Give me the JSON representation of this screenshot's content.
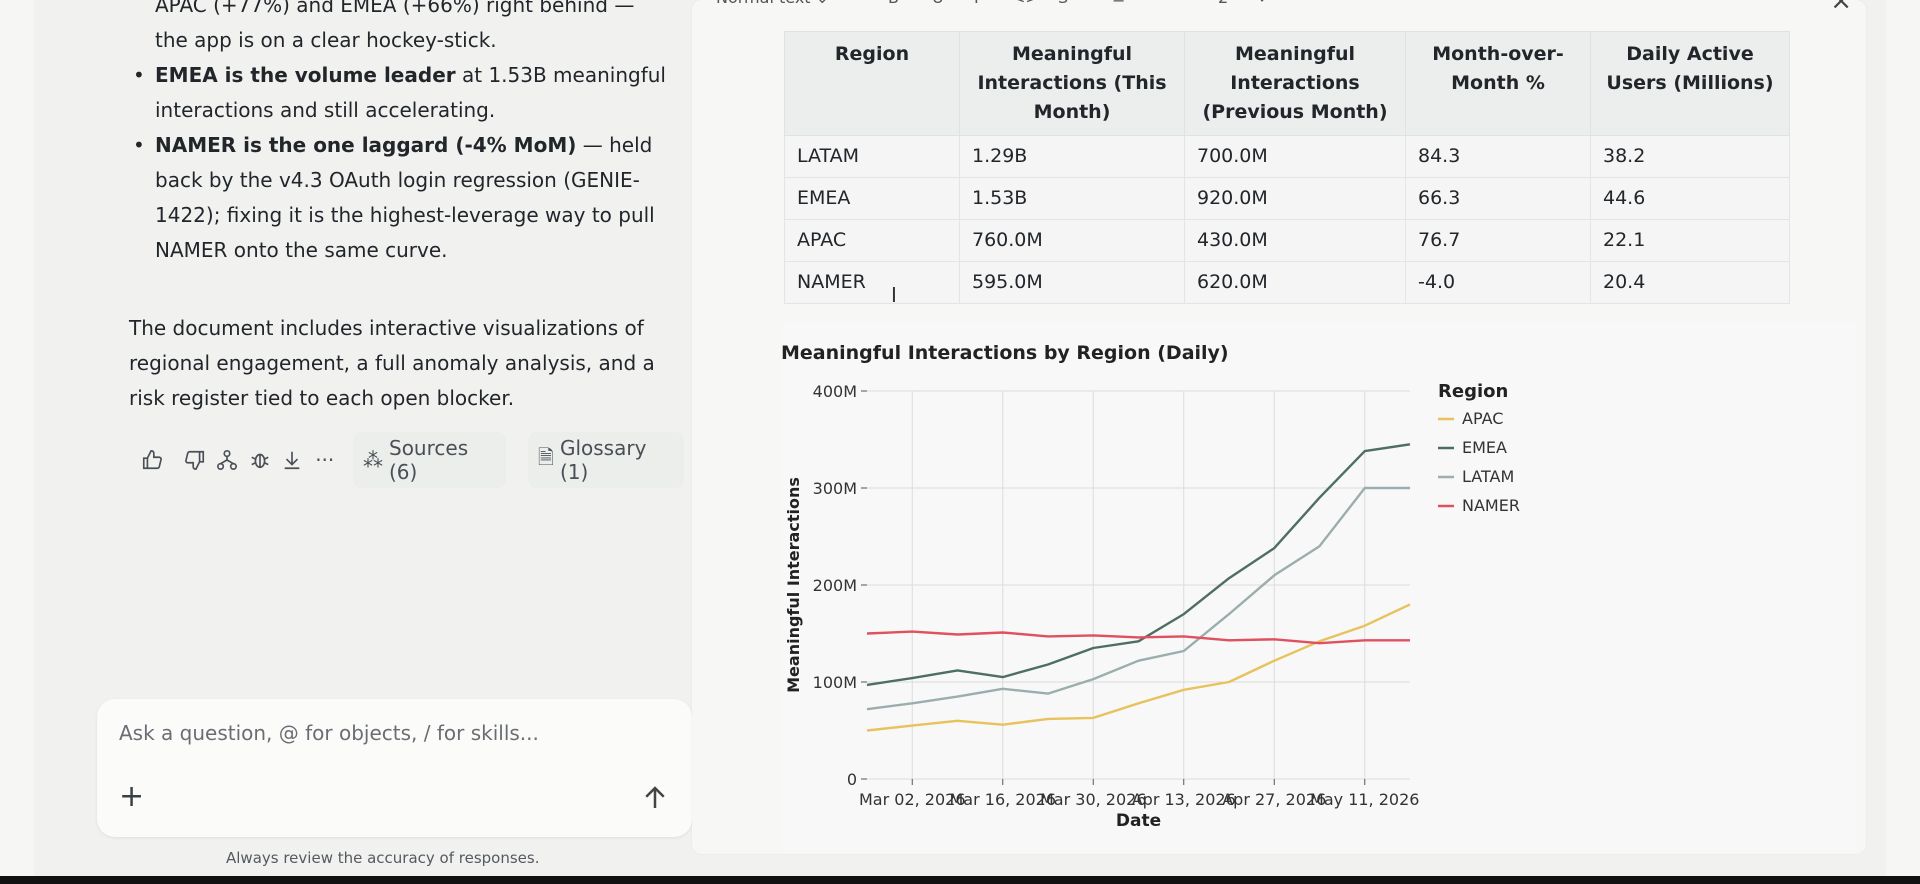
{
  "chat": {
    "bullets": [
      {
        "bold": "",
        "text": "APAC (+77%) and EMEA (+66%) right behind — the app is on a clear hockey-stick."
      },
      {
        "bold": "EMEA is the volume leader",
        "text": " at 1.53B meaningful interactions and still accelerating."
      },
      {
        "bold": "NAMER is the one laggard (-4% MoM)",
        "text": " — held back by the v4.3 OAuth login regression (GENIE-1422); fixing it is the highest-leverage way to pull NAMER onto the same curve."
      }
    ],
    "paragraph": "The document includes interactive visualizations of regional engagement, a full anomaly analysis, and a risk register tied to each open blocker.",
    "sources_label": "Sources (6)",
    "glossary_label": "Glossary (1)",
    "composer_placeholder": "Ask a question, @ for objects, / for skills...",
    "disclaimer": "Always review the accuracy of responses."
  },
  "toolbar": {
    "text_style": "Normal text",
    "icons": [
      "bold-icon",
      "underline-icon",
      "italic-icon",
      "code-icon",
      "strikethrough-icon",
      "align-icon",
      "bullet-list-icon",
      "numbered-list-icon",
      "checklist-icon",
      "undo-icon",
      "redo-icon"
    ]
  },
  "table": {
    "headers": [
      [
        "Region"
      ],
      [
        "Meaningful",
        "Interactions (This",
        "Month)"
      ],
      [
        "Meaningful",
        "Interactions",
        "(Previous Month)"
      ],
      [
        "Month-over-",
        "Month %"
      ],
      [
        "Daily Active",
        "Users (Millions)"
      ]
    ],
    "rows": [
      [
        "LATAM",
        "1.29B",
        "700.0M",
        "84.3",
        "38.2"
      ],
      [
        "EMEA",
        "1.53B",
        "920.0M",
        "66.3",
        "44.6"
      ],
      [
        "APAC",
        "760.0M",
        "430.0M",
        "76.7",
        "22.1"
      ],
      [
        "NAMER",
        "595.0M",
        "620.0M",
        "-4.0",
        "20.4"
      ]
    ]
  },
  "chart_data": {
    "type": "line",
    "title": "Meaningful Interactions by Region (Daily)",
    "xlabel": "Date",
    "ylabel": "Meaningful Interactions",
    "x_ticks": [
      "Mar 02, 2026",
      "Mar 16, 2026",
      "Mar 30, 2026",
      "Apr 13, 2026",
      "Apr 27, 2026",
      "May 11, 2026"
    ],
    "y_ticks": [
      "0",
      "100M",
      "200M",
      "300M",
      "400M"
    ],
    "ylim": [
      0,
      400
    ],
    "grid": true,
    "legend_title": "Region",
    "legend_position": "right",
    "x": [
      "2026-02-23",
      "2026-03-02",
      "2026-03-09",
      "2026-03-16",
      "2026-03-23",
      "2026-03-30",
      "2026-04-06",
      "2026-04-13",
      "2026-04-20",
      "2026-04-27",
      "2026-05-04",
      "2026-05-11",
      "2026-05-18"
    ],
    "series": [
      {
        "name": "APAC",
        "color": "#e8c25c",
        "values": [
          50,
          55,
          60,
          56,
          62,
          63,
          78,
          92,
          100,
          122,
          142,
          158,
          180
        ]
      },
      {
        "name": "EMEA",
        "color": "#4e6e62",
        "values": [
          97,
          104,
          112,
          105,
          118,
          135,
          142,
          170,
          207,
          238,
          290,
          338,
          345
        ]
      },
      {
        "name": "LATAM",
        "color": "#9cadad",
        "values": [
          72,
          78,
          85,
          93,
          88,
          103,
          122,
          132,
          170,
          210,
          240,
          300,
          300
        ]
      },
      {
        "name": "NAMER",
        "color": "#e0505f",
        "values": [
          150,
          152,
          149,
          151,
          147,
          148,
          146,
          147,
          143,
          144,
          140,
          143,
          143
        ]
      }
    ]
  }
}
